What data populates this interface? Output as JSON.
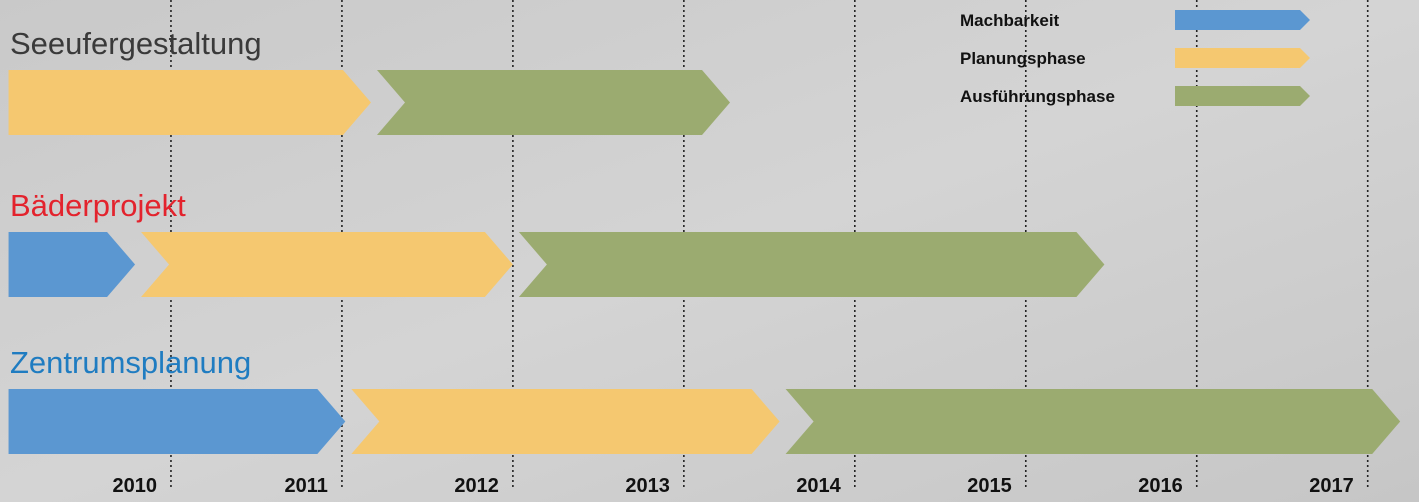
{
  "chart_data": {
    "type": "gantt",
    "categories": [
      "Seeufergestaltung",
      "Bäderprojekt",
      "Zentrumsplanung"
    ],
    "category_colors": [
      "#3a3a3a",
      "#e3232d",
      "#1f7cc1"
    ],
    "series": [
      {
        "name": "Machbarkeit",
        "color": "#5b97d1",
        "values": [
          null,
          [
            2009.05,
            2009.79
          ],
          [
            2009.05,
            2011.02
          ]
        ]
      },
      {
        "name": "Planungsphase",
        "color": "#f5c870",
        "values": [
          [
            2009.05,
            2011.17
          ],
          [
            2009.79,
            2012.0
          ],
          [
            2011.02,
            2013.56
          ]
        ]
      },
      {
        "name": "Ausführungsphase",
        "color": "#9bab70",
        "values": [
          [
            2011.17,
            2013.27
          ],
          [
            2012.0,
            2015.46
          ],
          [
            2013.56,
            2017.19
          ]
        ]
      }
    ],
    "xlim": [
      2009,
      2017.3
    ],
    "xticks": [
      2010,
      2011,
      2012,
      2013,
      2014,
      2015,
      2016,
      2017
    ],
    "legend": "top-right",
    "grid": true
  }
}
